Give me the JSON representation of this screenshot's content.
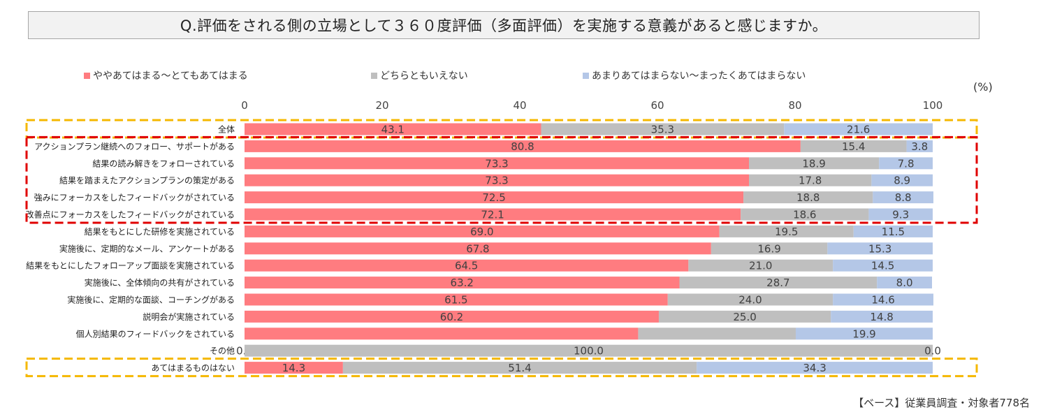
{
  "title": "Q.評価をされる側の立場として３６０度評価（多面評価）を実施する意義があると感じますか。",
  "unit_label": "(%)",
  "source_note": "【ベース】従業員調査・対象者778名",
  "colors": {
    "agree": "#ff7c80",
    "neutral": "#bfbfbf",
    "disagree": "#b4c7e7",
    "highlight_yellow": "#f5b800",
    "highlight_red": "#e00000"
  },
  "chart_data": {
    "type": "bar",
    "orientation": "horizontal",
    "stacked": true,
    "xlim": [
      0,
      100
    ],
    "x_ticks": [
      0,
      20,
      40,
      60,
      80,
      100
    ],
    "legend_position": "top",
    "grid": false,
    "categories": [
      "全体",
      "アクションプラン継続へのフォロー、サポートがある",
      "結果の読み解きをフォローされている",
      "結果を踏まえたアクションプランの策定がある",
      "強みにフォーカスをしたフィードバックがされている",
      "改善点にフォーカスをしたフィードバックがされている",
      "結果をもとにした研修を実施されている",
      "実施後に、定期的なメール、アンケートがある",
      "結果をもとにしたフォローアップ面談を実施されている",
      "実施後に、全体傾向の共有がされている",
      "実施後に、定期的な面談、コーチングがある",
      "説明会が実施されている",
      "個人別結果のフィードバックをされている",
      "その他",
      "あてはまるものはない"
    ],
    "series": [
      {
        "name": "ややあてはまる～とてもあてはまる",
        "values": [
          43.1,
          80.8,
          73.3,
          73.3,
          72.5,
          72.1,
          69.0,
          67.8,
          64.5,
          63.2,
          61.5,
          60.2,
          57.2,
          0.0,
          14.3
        ]
      },
      {
        "name": "どちらともいえない",
        "values": [
          35.3,
          15.4,
          18.9,
          17.8,
          18.8,
          18.6,
          19.5,
          16.9,
          21.0,
          28.7,
          24.0,
          25.0,
          22.9,
          100.0,
          51.4
        ]
      },
      {
        "name": "あまりあてはまらない～まったくあてはまらない",
        "values": [
          21.6,
          3.8,
          7.8,
          8.9,
          8.8,
          9.3,
          11.5,
          15.3,
          14.5,
          8.0,
          14.6,
          14.8,
          19.9,
          0.0,
          34.3
        ]
      }
    ],
    "data_labels": [
      [
        "43.1",
        "35.3",
        "21.6"
      ],
      [
        "80.8",
        "15.4",
        "3.8"
      ],
      [
        "73.3",
        "18.9",
        "7.8"
      ],
      [
        "73.3",
        "17.8",
        "8.9"
      ],
      [
        "72.5",
        "18.8",
        "8.8"
      ],
      [
        "72.1",
        "18.6",
        "9.3"
      ],
      [
        "69.0",
        "19.5",
        "11.5"
      ],
      [
        "67.8",
        "16.9",
        "15.3"
      ],
      [
        "64.5",
        "21.0",
        "14.5"
      ],
      [
        "63.2",
        "28.7",
        "8.0"
      ],
      [
        "61.5",
        "24.0",
        "14.6"
      ],
      [
        "60.2",
        "25.0",
        "14.8"
      ],
      [
        "",
        "",
        "19.9"
      ],
      [
        "0.0",
        "100.0",
        "0.0"
      ],
      [
        "14.3",
        "51.4",
        "34.3"
      ]
    ],
    "highlight_groups": [
      {
        "style": "yellow-dashed",
        "rows": [
          0,
          0
        ]
      },
      {
        "style": "red-dashed",
        "rows": [
          1,
          5
        ]
      },
      {
        "style": "yellow-dashed",
        "rows": [
          14,
          14
        ]
      }
    ]
  }
}
